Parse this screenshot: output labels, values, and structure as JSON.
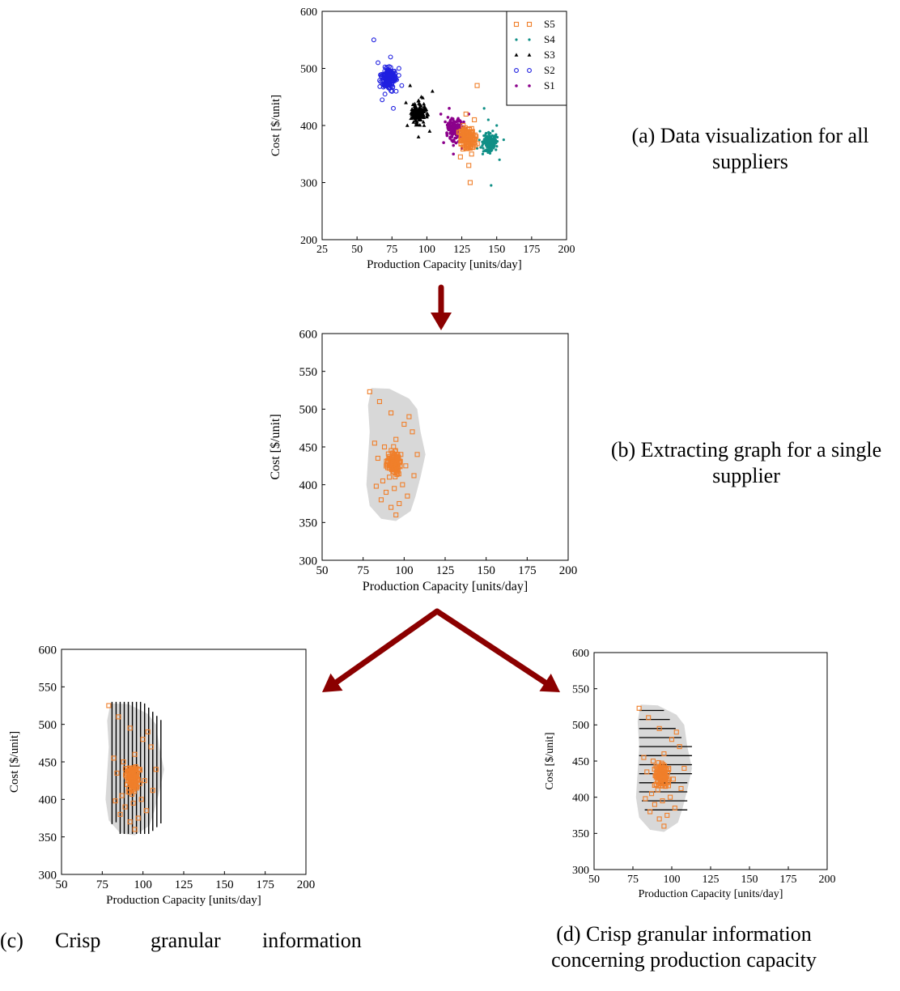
{
  "captions": {
    "a": "(a) Data visualization for all suppliers",
    "b": "(b) Extracting graph for a single supplier",
    "c_parts": [
      "(c)",
      "Crisp",
      "granular",
      "information"
    ],
    "d": "(d) Crisp granular information concerning production capacity"
  },
  "colors": {
    "S1": "#8b008b",
    "S2": "#1f1fe0",
    "S3": "#000000",
    "S4": "#0f8f86",
    "S5": "#f07f2a",
    "region": "#d8d8d8",
    "arrow": "#8b0000"
  },
  "chart_data": [
    {
      "id": "a",
      "type": "scatter",
      "title": "",
      "xlabel": "Production Capacity [units/day]",
      "ylabel": "Cost [$/unit]",
      "xlim": [
        25,
        200
      ],
      "ylim": [
        200,
        600
      ],
      "xticks": [
        25,
        50,
        75,
        100,
        125,
        150,
        175,
        200
      ],
      "yticks": [
        200,
        300,
        400,
        500,
        600
      ],
      "legend": {
        "placement": "top-right",
        "entries": [
          "S5",
          "S4",
          "S3",
          "S2",
          "S1"
        ]
      },
      "series": [
        {
          "name": "S1",
          "marker": "star",
          "points": [
            [
              110,
              420
            ],
            [
              115,
              400
            ],
            [
              118,
              380
            ],
            [
              120,
              390
            ],
            [
              122,
              410
            ],
            [
              125,
              360
            ],
            [
              112,
              370
            ],
            [
              128,
              395
            ],
            [
              130,
              420
            ],
            [
              119,
              350
            ],
            [
              116,
              430
            ],
            [
              124,
              385
            ]
          ]
        },
        {
          "name": "S2",
          "marker": "circle",
          "points": [
            [
              62,
              550
            ],
            [
              65,
              510
            ],
            [
              70,
              490
            ],
            [
              72,
              470
            ],
            [
              75,
              480
            ],
            [
              78,
              460
            ],
            [
              80,
              500
            ],
            [
              68,
              445
            ],
            [
              74,
              520
            ],
            [
              82,
              470
            ],
            [
              70,
              455
            ],
            [
              76,
              430
            ]
          ]
        },
        {
          "name": "S3",
          "marker": "triangle",
          "points": [
            [
              85,
              440
            ],
            [
              90,
              420
            ],
            [
              92,
              410
            ],
            [
              95,
              430
            ],
            [
              98,
              400
            ],
            [
              100,
              415
            ],
            [
              88,
              470
            ],
            [
              96,
              450
            ],
            [
              102,
              390
            ],
            [
              94,
              380
            ],
            [
              86,
              400
            ],
            [
              104,
              460
            ]
          ]
        },
        {
          "name": "S4",
          "marker": "diamond",
          "points": [
            [
              138,
              390
            ],
            [
              142,
              370
            ],
            [
              145,
              360
            ],
            [
              148,
              380
            ],
            [
              140,
              350
            ],
            [
              150,
              400
            ],
            [
              144,
              410
            ],
            [
              152,
              340
            ],
            [
              136,
              360
            ],
            [
              146,
              295
            ],
            [
              141,
              430
            ],
            [
              155,
              375
            ]
          ]
        },
        {
          "name": "S5",
          "marker": "square",
          "points": [
            [
              125,
              380
            ],
            [
              128,
              360
            ],
            [
              130,
              370
            ],
            [
              132,
              350
            ],
            [
              126,
              400
            ],
            [
              134,
              410
            ],
            [
              130,
              330
            ],
            [
              124,
              345
            ],
            [
              136,
              470
            ],
            [
              128,
              420
            ],
            [
              131,
              300
            ],
            [
              127,
              390
            ]
          ]
        }
      ]
    },
    {
      "id": "b",
      "type": "scatter",
      "title": "",
      "xlabel": "Production Capacity [units/day]",
      "ylabel": "Cost [$/unit]",
      "xlim": [
        50,
        200
      ],
      "ylim": [
        300,
        600
      ],
      "xticks": [
        50,
        75,
        100,
        125,
        150,
        175,
        200
      ],
      "yticks": [
        300,
        350,
        400,
        450,
        500,
        550,
        600
      ],
      "region": "shaded",
      "series": [
        {
          "name": "",
          "marker": "square",
          "points": [
            [
              79,
              523
            ],
            [
              85,
              510
            ],
            [
              92,
              495
            ],
            [
              100,
              480
            ],
            [
              105,
              470
            ],
            [
              95,
              460
            ],
            [
              88,
              450
            ],
            [
              98,
              440
            ],
            [
              90,
              430
            ],
            [
              93,
              420
            ],
            [
              96,
              415
            ],
            [
              91,
              410
            ],
            [
              87,
              405
            ],
            [
              99,
              400
            ],
            [
              94,
              395
            ],
            [
              89,
              390
            ],
            [
              102,
              385
            ],
            [
              86,
              380
            ],
            [
              97,
              375
            ],
            [
              92,
              370
            ],
            [
              95,
              360
            ],
            [
              84,
              435
            ],
            [
              101,
              425
            ],
            [
              106,
              412
            ],
            [
              83,
              398
            ],
            [
              108,
              440
            ],
            [
              82,
              455
            ],
            [
              103,
              490
            ]
          ]
        }
      ]
    },
    {
      "id": "c",
      "type": "scatter",
      "title": "",
      "xlabel": "Production Capacity [units/day]",
      "ylabel": "Cost [$/unit]",
      "xlim": [
        50,
        200
      ],
      "ylim": [
        300,
        600
      ],
      "xticks": [
        50,
        75,
        100,
        125,
        150,
        175,
        200
      ],
      "yticks": [
        300,
        350,
        400,
        450,
        500,
        550,
        600
      ],
      "region": "shaded",
      "granulation": "vertical",
      "series": [
        {
          "name": "",
          "marker": "square",
          "points": [
            [
              79,
              525
            ],
            [
              85,
              510
            ],
            [
              92,
              495
            ],
            [
              100,
              480
            ],
            [
              105,
              470
            ],
            [
              95,
              460
            ],
            [
              88,
              450
            ],
            [
              98,
              440
            ],
            [
              90,
              430
            ],
            [
              93,
              420
            ],
            [
              96,
              415
            ],
            [
              91,
              410
            ],
            [
              87,
              405
            ],
            [
              99,
              400
            ],
            [
              94,
              395
            ],
            [
              89,
              390
            ],
            [
              102,
              385
            ],
            [
              86,
              380
            ],
            [
              97,
              375
            ],
            [
              92,
              370
            ],
            [
              95,
              360
            ],
            [
              84,
              435
            ],
            [
              101,
              425
            ],
            [
              106,
              412
            ],
            [
              83,
              398
            ],
            [
              108,
              440
            ],
            [
              82,
              455
            ],
            [
              103,
              490
            ]
          ]
        }
      ]
    },
    {
      "id": "d",
      "type": "scatter",
      "title": "",
      "xlabel": "Production Capacity [units/day]",
      "ylabel": "Cost [$/unit]",
      "xlim": [
        50,
        200
      ],
      "ylim": [
        300,
        600
      ],
      "xticks": [
        50,
        75,
        100,
        125,
        150,
        175,
        200
      ],
      "yticks": [
        300,
        350,
        400,
        450,
        500,
        550,
        600
      ],
      "region": "shaded",
      "granulation": "horizontal",
      "series": [
        {
          "name": "",
          "marker": "square",
          "points": [
            [
              79,
              523
            ],
            [
              85,
              510
            ],
            [
              92,
              495
            ],
            [
              100,
              480
            ],
            [
              105,
              470
            ],
            [
              95,
              460
            ],
            [
              88,
              450
            ],
            [
              98,
              440
            ],
            [
              90,
              430
            ],
            [
              93,
              420
            ],
            [
              96,
              415
            ],
            [
              91,
              410
            ],
            [
              87,
              405
            ],
            [
              99,
              400
            ],
            [
              94,
              395
            ],
            [
              89,
              390
            ],
            [
              102,
              385
            ],
            [
              86,
              380
            ],
            [
              97,
              375
            ],
            [
              92,
              370
            ],
            [
              95,
              360
            ],
            [
              84,
              435
            ],
            [
              101,
              425
            ],
            [
              106,
              412
            ],
            [
              83,
              398
            ],
            [
              108,
              440
            ],
            [
              82,
              455
            ],
            [
              103,
              490
            ]
          ]
        }
      ]
    }
  ]
}
